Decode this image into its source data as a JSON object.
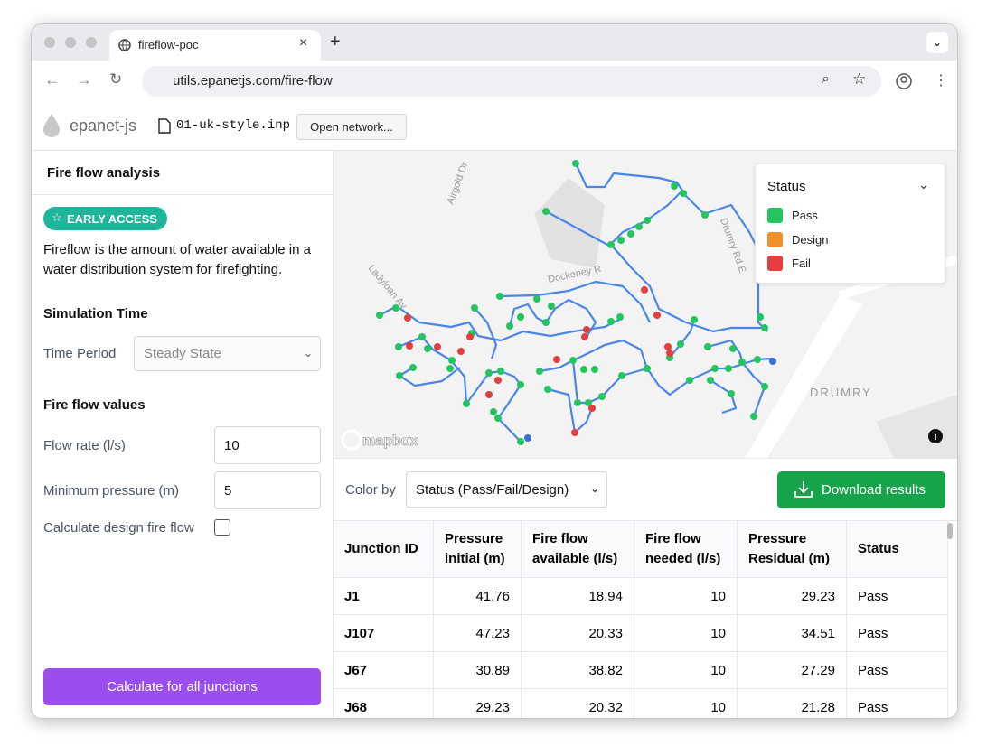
{
  "browser": {
    "tab_title": "fireflow-poc",
    "url": "utils.epanetjs.com/fire-flow"
  },
  "header": {
    "brand": "epanet-js",
    "file_name": "01-uk-style.inp",
    "open_button": "Open network..."
  },
  "sidebar": {
    "title": "Fire flow analysis",
    "badge": "EARLY ACCESS",
    "description": "Fireflow is the amount of water available in a water distribution system for firefighting.",
    "simulation_section": "Simulation Time",
    "time_period_label": "Time Period",
    "time_period_value": "Steady State",
    "fire_flow_section": "Fire flow values",
    "flow_rate_label": "Flow rate (l/s)",
    "flow_rate_value": "10",
    "min_pressure_label": "Minimum pressure (m)",
    "min_pressure_value": "5",
    "design_flow_label": "Calculate design fire flow",
    "calculate_button": "Calculate for all junctions"
  },
  "map": {
    "street_labels": [
      "Airgold Dr",
      "Dockeney R",
      "Drumry Rd E",
      "Ladyloan Av",
      "DRUMRY"
    ],
    "attribution": "mapbox",
    "legend": {
      "title": "Status",
      "items": [
        "Pass",
        "Design",
        "Fail"
      ]
    }
  },
  "results": {
    "color_by_label": "Color by",
    "color_by_value": "Status (Pass/Fail/Design)",
    "download_button": "Download results",
    "table": {
      "columns": [
        "Junction ID",
        "Pressure initial (m)",
        "Fire flow available (l/s)",
        "Fire flow needed (l/s)",
        "Pressure Residual (m)",
        "Status"
      ],
      "rows": [
        [
          "J1",
          "41.76",
          "18.94",
          "10",
          "29.23",
          "Pass"
        ],
        [
          "J107",
          "47.23",
          "20.33",
          "10",
          "34.51",
          "Pass"
        ],
        [
          "J67",
          "30.89",
          "38.82",
          "10",
          "27.29",
          "Pass"
        ],
        [
          "J68",
          "29.23",
          "20.32",
          "10",
          "21.28",
          "Pass"
        ]
      ]
    }
  }
}
